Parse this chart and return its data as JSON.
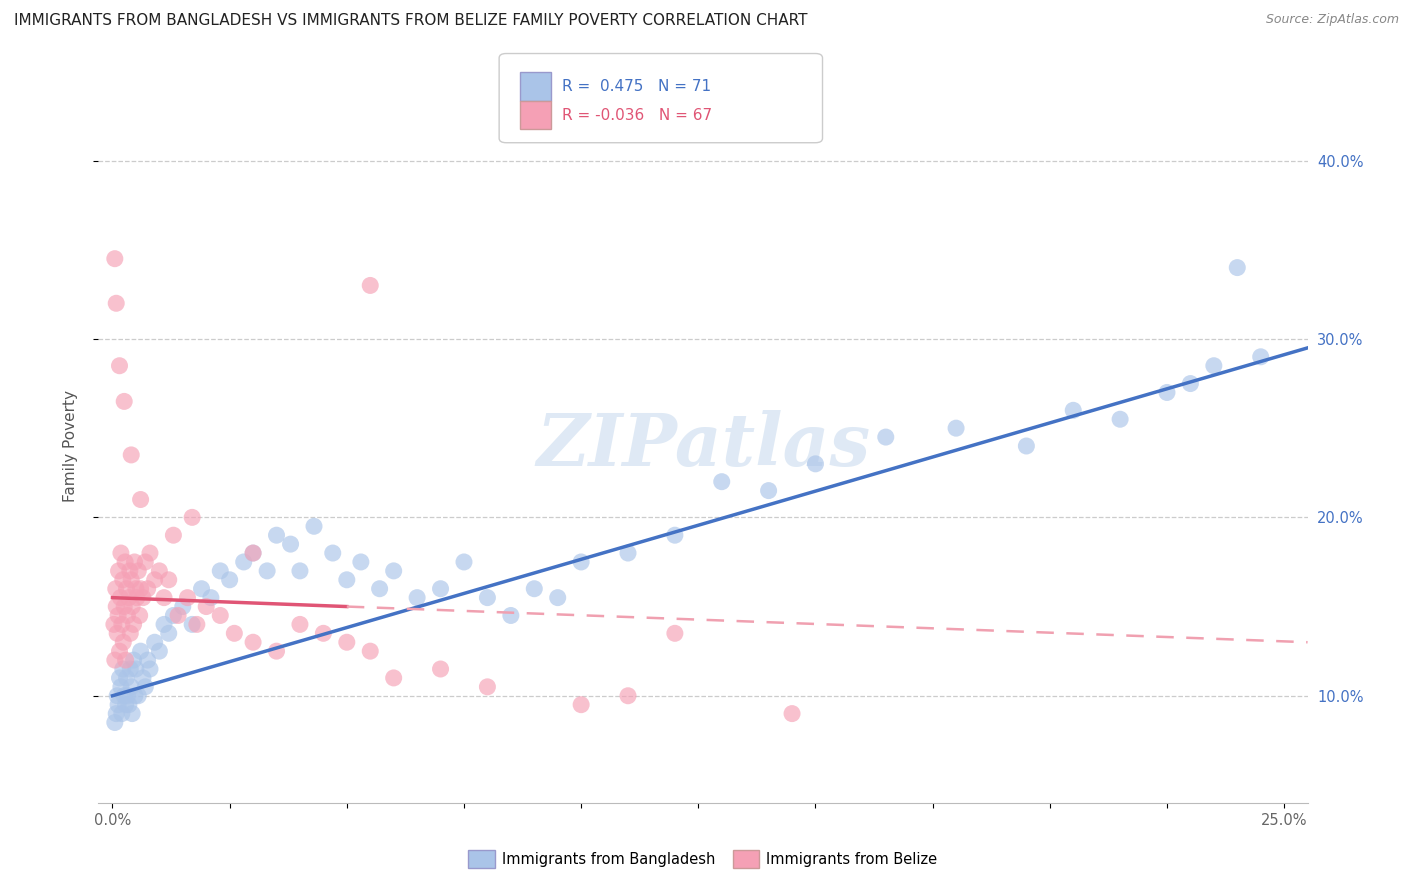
{
  "title": "IMMIGRANTS FROM BANGLADESH VS IMMIGRANTS FROM BELIZE FAMILY POVERTY CORRELATION CHART",
  "source": "Source: ZipAtlas.com",
  "ylabel": "Family Poverty",
  "x_ticks": [
    0.0,
    2.5,
    5.0,
    7.5,
    10.0,
    12.5,
    15.0,
    17.5,
    20.0,
    22.5,
    25.0
  ],
  "x_tick_labels_show": [
    "0.0%",
    "",
    "",
    "",
    "",
    "",
    "",
    "",
    "",
    "",
    "25.0%"
  ],
  "y_ticks": [
    10.0,
    20.0,
    30.0,
    40.0
  ],
  "y_tick_labels": [
    "10.0%",
    "20.0%",
    "30.0%",
    "40.0%"
  ],
  "xlim": [
    -0.3,
    25.5
  ],
  "ylim": [
    4.0,
    44.0
  ],
  "bangladesh_color": "#aac4e8",
  "belize_color": "#f5a0b5",
  "trend_bangladesh_color": "#4472c4",
  "trend_belize_solid_color": "#e05575",
  "trend_belize_dash_color": "#f0a0b0",
  "R_bangladesh": 0.475,
  "N_bangladesh": 71,
  "R_belize": -0.036,
  "N_belize": 67,
  "legend_label_bangladesh": "Immigrants from Bangladesh",
  "legend_label_belize": "Immigrants from Belize",
  "bangladesh_x": [
    0.05,
    0.08,
    0.1,
    0.12,
    0.15,
    0.18,
    0.2,
    0.22,
    0.25,
    0.28,
    0.3,
    0.32,
    0.35,
    0.38,
    0.4,
    0.42,
    0.45,
    0.48,
    0.5,
    0.55,
    0.6,
    0.65,
    0.7,
    0.75,
    0.8,
    0.9,
    1.0,
    1.1,
    1.2,
    1.3,
    1.5,
    1.7,
    1.9,
    2.1,
    2.3,
    2.5,
    2.8,
    3.0,
    3.3,
    3.5,
    3.8,
    4.0,
    4.3,
    4.7,
    5.0,
    5.3,
    5.7,
    6.0,
    6.5,
    7.0,
    7.5,
    8.0,
    8.5,
    9.0,
    9.5,
    10.0,
    11.0,
    12.0,
    13.0,
    14.0,
    15.0,
    16.5,
    18.0,
    19.5,
    20.5,
    21.5,
    22.5,
    23.0,
    23.5,
    24.0,
    24.5
  ],
  "bangladesh_y": [
    8.5,
    9.0,
    10.0,
    9.5,
    11.0,
    10.5,
    9.0,
    11.5,
    10.0,
    9.5,
    11.0,
    10.0,
    9.5,
    11.5,
    10.5,
    9.0,
    12.0,
    10.0,
    11.5,
    10.0,
    12.5,
    11.0,
    10.5,
    12.0,
    11.5,
    13.0,
    12.5,
    14.0,
    13.5,
    14.5,
    15.0,
    14.0,
    16.0,
    15.5,
    17.0,
    16.5,
    17.5,
    18.0,
    17.0,
    19.0,
    18.5,
    17.0,
    19.5,
    18.0,
    16.5,
    17.5,
    16.0,
    17.0,
    15.5,
    16.0,
    17.5,
    15.5,
    14.5,
    16.0,
    15.5,
    17.5,
    18.0,
    19.0,
    22.0,
    21.5,
    23.0,
    24.5,
    25.0,
    24.0,
    26.0,
    25.5,
    27.0,
    27.5,
    28.5,
    34.0,
    29.0
  ],
  "belize_x": [
    0.03,
    0.05,
    0.07,
    0.08,
    0.1,
    0.12,
    0.13,
    0.15,
    0.17,
    0.18,
    0.2,
    0.22,
    0.23,
    0.25,
    0.27,
    0.28,
    0.3,
    0.32,
    0.35,
    0.37,
    0.38,
    0.4,
    0.42,
    0.45,
    0.47,
    0.5,
    0.52,
    0.55,
    0.58,
    0.6,
    0.65,
    0.7,
    0.75,
    0.8,
    0.9,
    1.0,
    1.1,
    1.2,
    1.4,
    1.6,
    1.8,
    2.0,
    2.3,
    2.6,
    3.0,
    3.5,
    4.0,
    4.5,
    5.0,
    5.5,
    6.0,
    7.0,
    8.0,
    10.0,
    11.0,
    14.5,
    1.3,
    0.6,
    0.4,
    0.25,
    0.15,
    0.08,
    0.05,
    3.0,
    1.7,
    5.5,
    12.0
  ],
  "belize_y": [
    14.0,
    12.0,
    16.0,
    15.0,
    13.5,
    14.5,
    17.0,
    12.5,
    15.5,
    18.0,
    14.0,
    16.5,
    13.0,
    15.0,
    17.5,
    12.0,
    16.0,
    14.5,
    15.5,
    17.0,
    13.5,
    16.5,
    15.0,
    14.0,
    17.5,
    16.0,
    15.5,
    17.0,
    14.5,
    16.0,
    15.5,
    17.5,
    16.0,
    18.0,
    16.5,
    17.0,
    15.5,
    16.5,
    14.5,
    15.5,
    14.0,
    15.0,
    14.5,
    13.5,
    13.0,
    12.5,
    14.0,
    13.5,
    13.0,
    12.5,
    11.0,
    11.5,
    10.5,
    9.5,
    10.0,
    9.0,
    19.0,
    21.0,
    23.5,
    26.5,
    28.5,
    32.0,
    34.5,
    18.0,
    20.0,
    33.0,
    13.5
  ],
  "watermark_text": "ZIPatlas",
  "title_fontsize": 11,
  "axis_label_fontsize": 11,
  "tick_fontsize": 10.5,
  "source_fontsize": 9
}
